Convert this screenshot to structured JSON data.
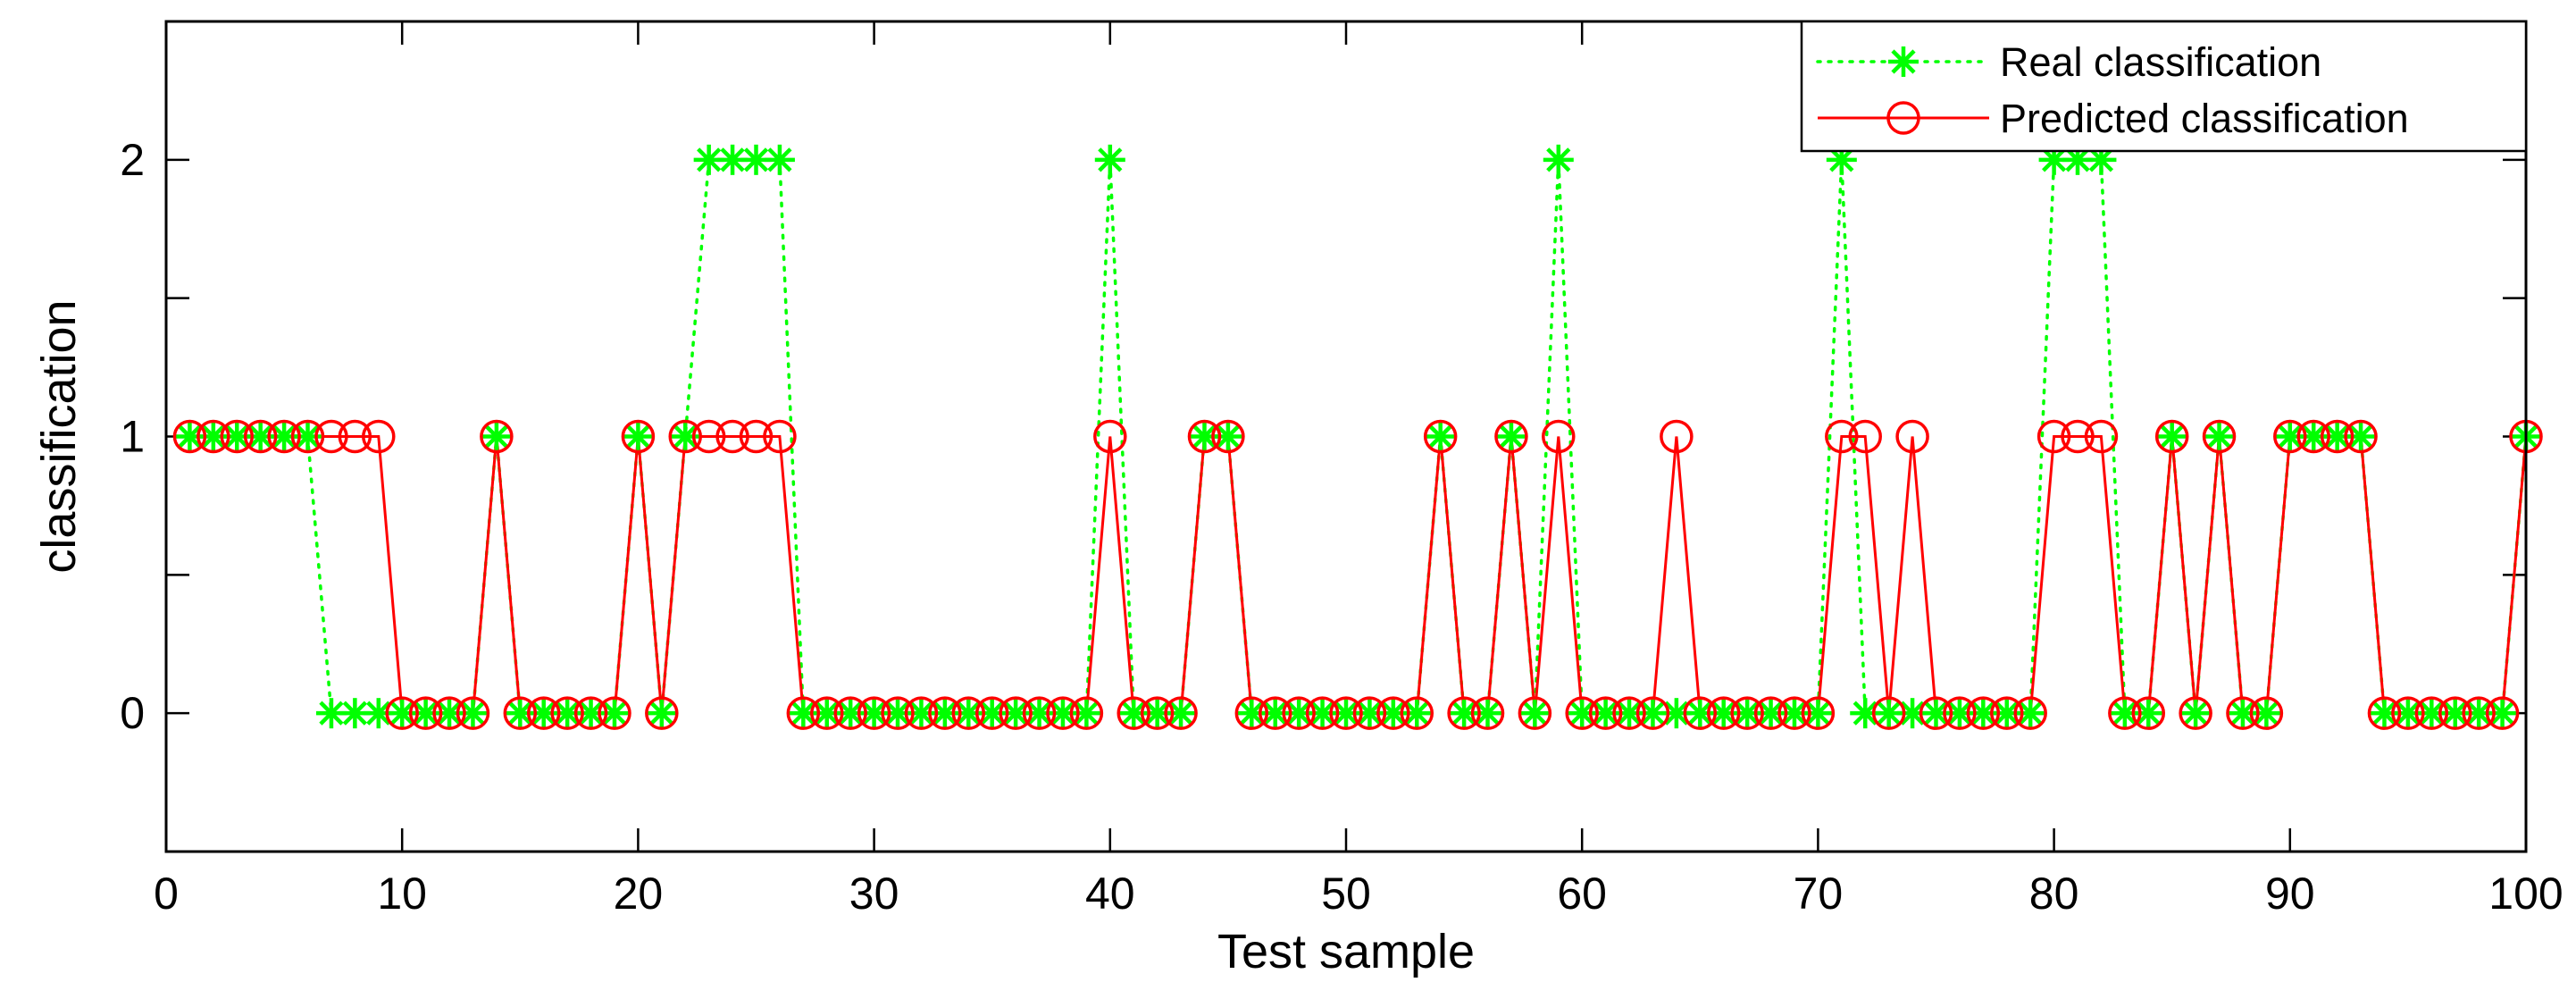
{
  "chart_data": {
    "type": "line",
    "title": "",
    "xlabel": "Test sample",
    "ylabel": "classification",
    "xlim": [
      0,
      100
    ],
    "ylim": [
      -0.5,
      2.5
    ],
    "xticks": [
      0,
      10,
      20,
      30,
      40,
      50,
      60,
      70,
      80,
      90,
      100
    ],
    "yticks": [
      0,
      1,
      2
    ],
    "xtick_labels": [
      "0",
      "10",
      "20",
      "30",
      "40",
      "50",
      "60",
      "70",
      "80",
      "90",
      "100"
    ],
    "ytick_labels": [
      "0",
      "1",
      "2"
    ],
    "grid": false,
    "legend_position": "top-right",
    "x": [
      1,
      2,
      3,
      4,
      5,
      6,
      7,
      8,
      9,
      10,
      11,
      12,
      13,
      14,
      15,
      16,
      17,
      18,
      19,
      20,
      21,
      22,
      23,
      24,
      25,
      26,
      27,
      28,
      29,
      30,
      31,
      32,
      33,
      34,
      35,
      36,
      37,
      38,
      39,
      40,
      41,
      42,
      43,
      44,
      45,
      46,
      47,
      48,
      49,
      50,
      51,
      52,
      53,
      54,
      55,
      56,
      57,
      58,
      59,
      60,
      61,
      62,
      63,
      64,
      65,
      66,
      67,
      68,
      69,
      70,
      71,
      72,
      73,
      74,
      75,
      76,
      77,
      78,
      79,
      80,
      81,
      82,
      83,
      84,
      85,
      86,
      87,
      88,
      89,
      90,
      91,
      92,
      93,
      94,
      95,
      96,
      97,
      98,
      99,
      100
    ],
    "series": [
      {
        "name": "Real classification",
        "color": "#00ff00",
        "line_style": "dotted",
        "marker": "asterisk",
        "values": [
          1,
          1,
          1,
          1,
          1,
          1,
          0,
          0,
          0,
          0,
          0,
          0,
          0,
          1,
          0,
          0,
          0,
          0,
          0,
          1,
          0,
          1,
          2,
          2,
          2,
          2,
          0,
          0,
          0,
          0,
          0,
          0,
          0,
          0,
          0,
          0,
          0,
          0,
          0,
          2,
          0,
          0,
          0,
          1,
          1,
          0,
          0,
          0,
          0,
          0,
          0,
          0,
          0,
          1,
          0,
          0,
          1,
          0,
          2,
          0,
          0,
          0,
          0,
          0,
          0,
          0,
          0,
          0,
          0,
          0,
          2,
          0,
          0,
          0,
          0,
          0,
          0,
          0,
          0,
          2,
          2,
          2,
          0,
          0,
          1,
          0,
          1,
          0,
          0,
          1,
          1,
          1,
          1,
          0,
          0,
          0,
          0,
          0,
          0,
          1
        ]
      },
      {
        "name": "Predicted classification",
        "color": "#ff0000",
        "line_style": "solid",
        "marker": "circle",
        "values": [
          1,
          1,
          1,
          1,
          1,
          1,
          1,
          1,
          1,
          0,
          0,
          0,
          0,
          1,
          0,
          0,
          0,
          0,
          0,
          1,
          0,
          1,
          1,
          1,
          1,
          1,
          0,
          0,
          0,
          0,
          0,
          0,
          0,
          0,
          0,
          0,
          0,
          0,
          0,
          1,
          0,
          0,
          0,
          1,
          1,
          0,
          0,
          0,
          0,
          0,
          0,
          0,
          0,
          1,
          0,
          0,
          1,
          0,
          1,
          0,
          0,
          0,
          0,
          1,
          0,
          0,
          0,
          0,
          0,
          0,
          1,
          1,
          0,
          1,
          0,
          0,
          0,
          0,
          0,
          1,
          1,
          1,
          0,
          0,
          1,
          0,
          1,
          0,
          0,
          1,
          1,
          1,
          1,
          0,
          0,
          0,
          0,
          0,
          0,
          1
        ]
      }
    ]
  }
}
